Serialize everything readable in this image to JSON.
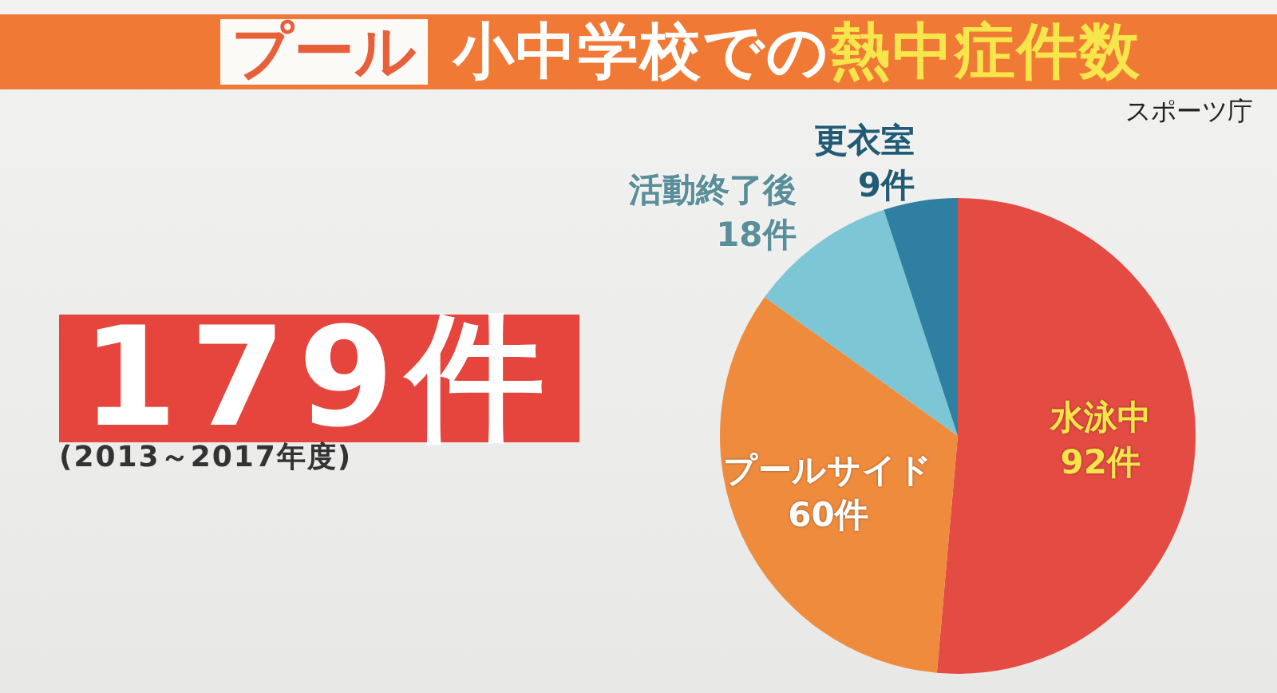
{
  "chart_data": {
    "type": "pie",
    "title": "小中学校での熱中症件数",
    "subtitle": "プール",
    "categories": [
      "水泳中",
      "プールサイド",
      "活動終了後",
      "更衣室"
    ],
    "values": [
      92,
      60,
      18,
      9
    ],
    "colors": [
      "#e34b43",
      "#ef8b3d",
      "#7dc6d6",
      "#2f7fa2"
    ],
    "value_labels": [
      "92件",
      "60件",
      "18件",
      "9件"
    ],
    "annotations": [
      "スポーツ庁",
      "179件",
      "(2013～2017年度)"
    ]
  }
}
